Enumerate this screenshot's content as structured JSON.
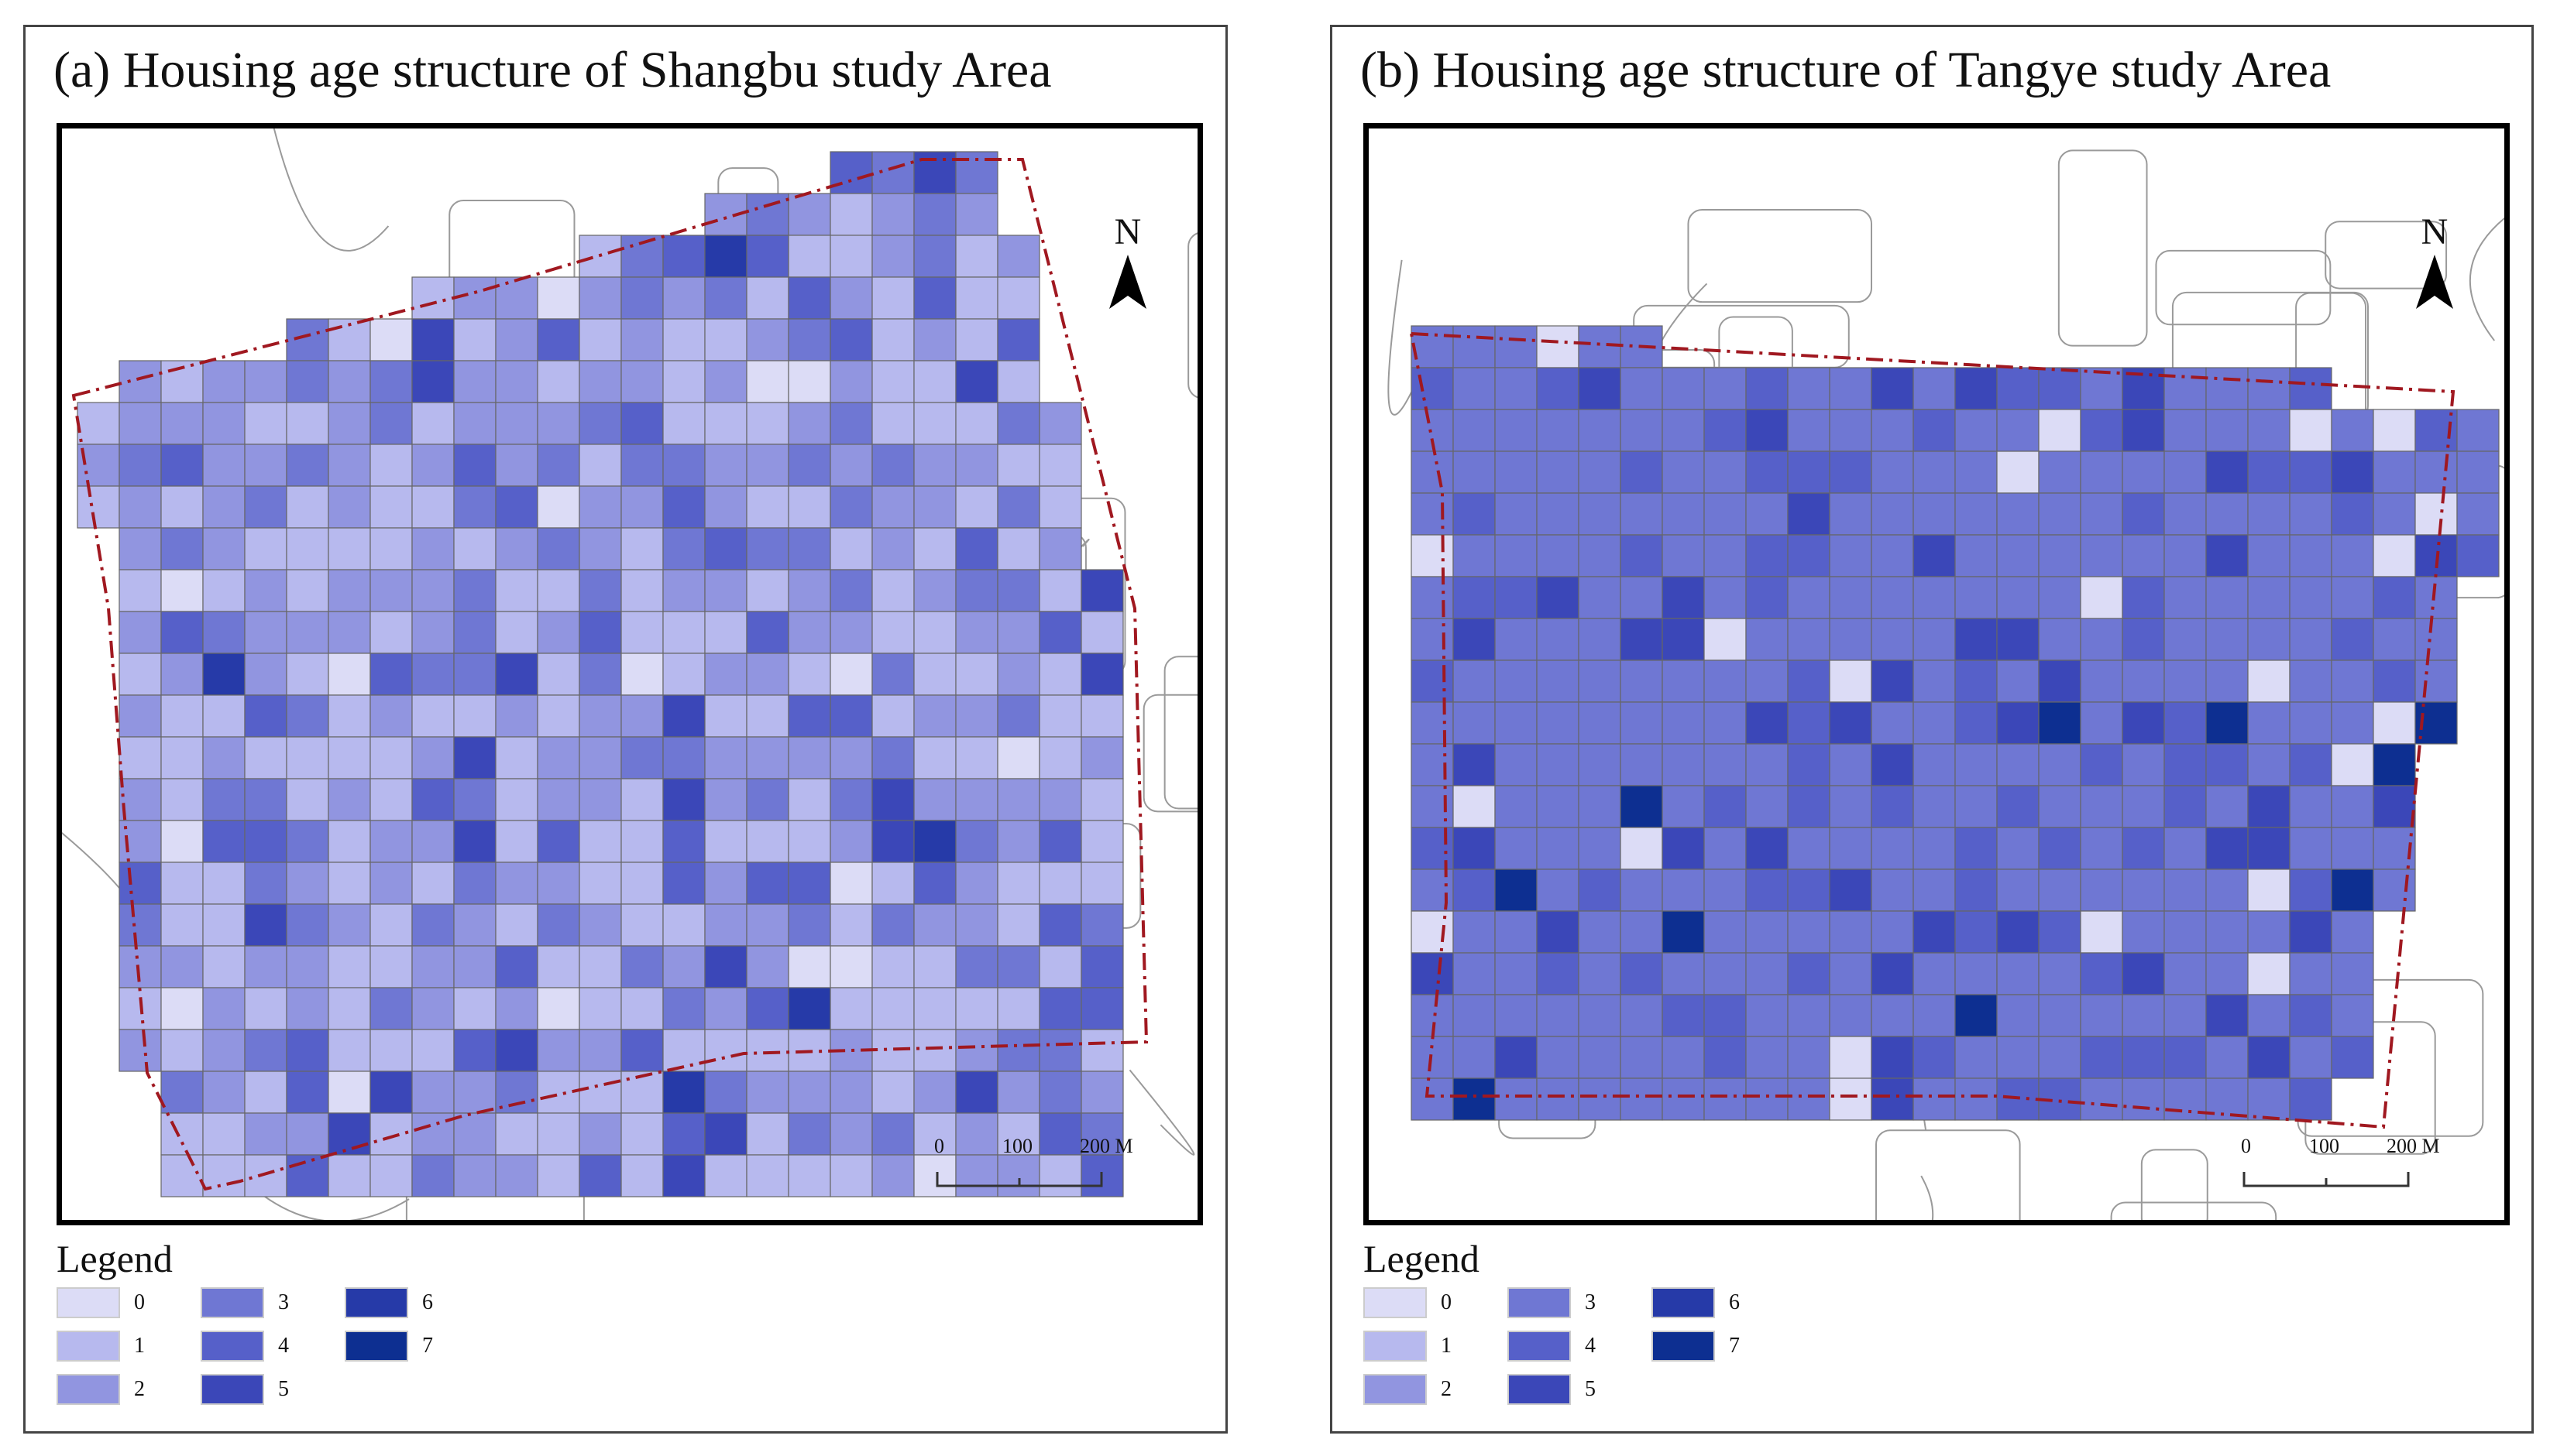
{
  "panels": [
    {
      "title": "(a) Housing age structure of Shangbu study Area",
      "legend_title": "Legend",
      "north_label": "N",
      "scale_labels": [
        "0",
        "100",
        "200 M"
      ]
    },
    {
      "title": "(b) Housing age structure of Tangye study Area",
      "legend_title": "Legend",
      "north_label": "N",
      "scale_labels": [
        "0",
        "100",
        "200 M"
      ]
    }
  ],
  "legend_items": [
    {
      "label": "0",
      "color": "#dcdcf6"
    },
    {
      "label": "1",
      "color": "#b7b9ee"
    },
    {
      "label": "2",
      "color": "#9195e0"
    },
    {
      "label": "3",
      "color": "#6f77d3"
    },
    {
      "label": "4",
      "color": "#5660c9"
    },
    {
      "label": "5",
      "color": "#3b47b8"
    },
    {
      "label": "6",
      "color": "#263aa8"
    },
    {
      "label": "7",
      "color": "#0d2f91"
    }
  ],
  "colors": {
    "boundary": "#a01820",
    "grid_line": "#666666",
    "frame": "#000000",
    "road_line": "#9a9a9a"
  }
}
